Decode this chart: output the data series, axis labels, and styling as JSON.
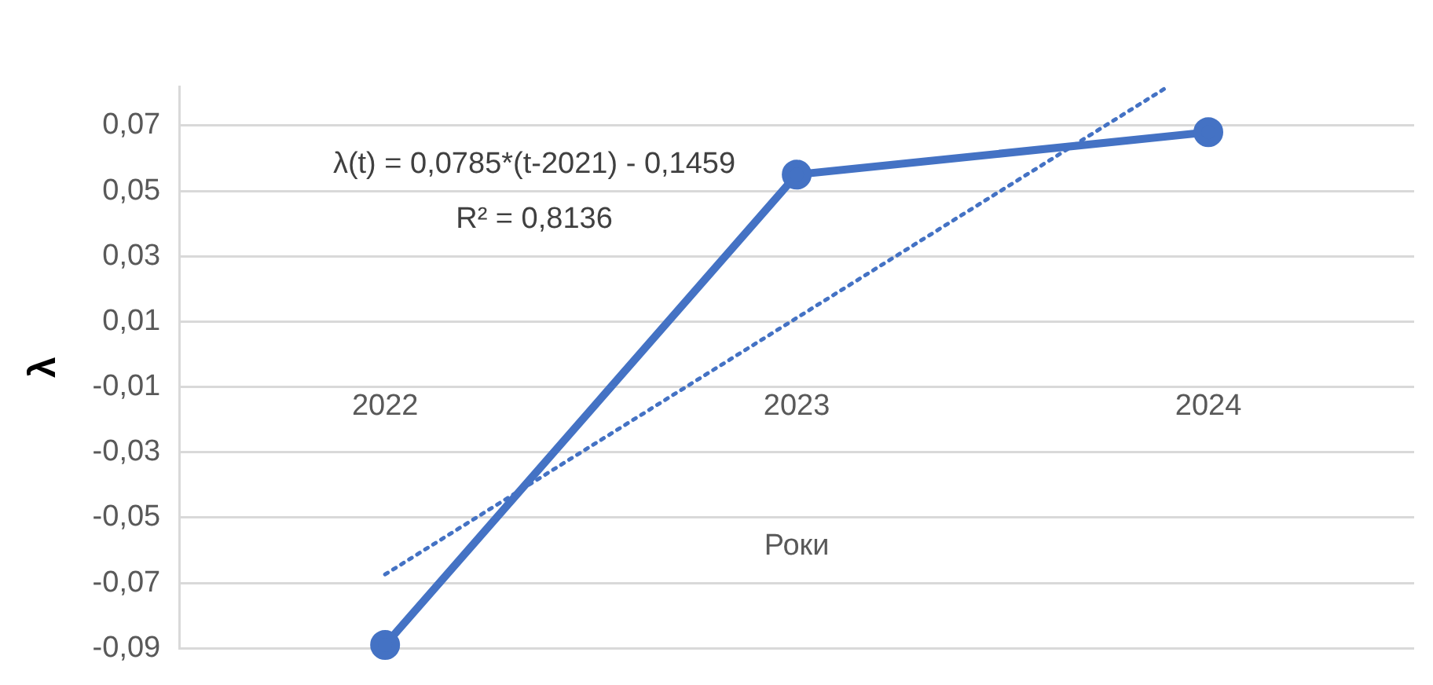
{
  "chart_data": {
    "type": "line",
    "xlabel": "Роки",
    "ylabel": "λ",
    "x": [
      2022,
      2023,
      2024
    ],
    "xlim": [
      2021.5,
      2024.5
    ],
    "xticks": [
      2022,
      2023,
      2024
    ],
    "ylim": [
      -0.09,
      0.082
    ],
    "yticks": [
      {
        "value": -0.09,
        "label": "-0,09"
      },
      {
        "value": -0.07,
        "label": "-0,07"
      },
      {
        "value": -0.05,
        "label": "-0,05"
      },
      {
        "value": -0.03,
        "label": "-0,03"
      },
      {
        "value": -0.01,
        "label": "-0,01"
      },
      {
        "value": 0.01,
        "label": "0,01"
      },
      {
        "value": 0.03,
        "label": "0,03"
      },
      {
        "value": 0.05,
        "label": "0,05"
      },
      {
        "value": 0.07,
        "label": "0,07"
      }
    ],
    "series": [
      {
        "color": "#4472c4",
        "values": [
          -0.089,
          0.055,
          0.068
        ],
        "marker": "circle",
        "line_style": "solid"
      },
      {
        "type": "line",
        "color": "#4472c4",
        "x": [
          2022,
          2023.9
        ],
        "values": [
          -0.0674,
          0.0818
        ],
        "marker": "none",
        "line_style": "dotted"
      }
    ],
    "annotations": [
      "λ(t) = 0,0785*(t-2021) - 0,1459",
      "R² = 0,8136"
    ],
    "grid": "y",
    "legend": false
  }
}
